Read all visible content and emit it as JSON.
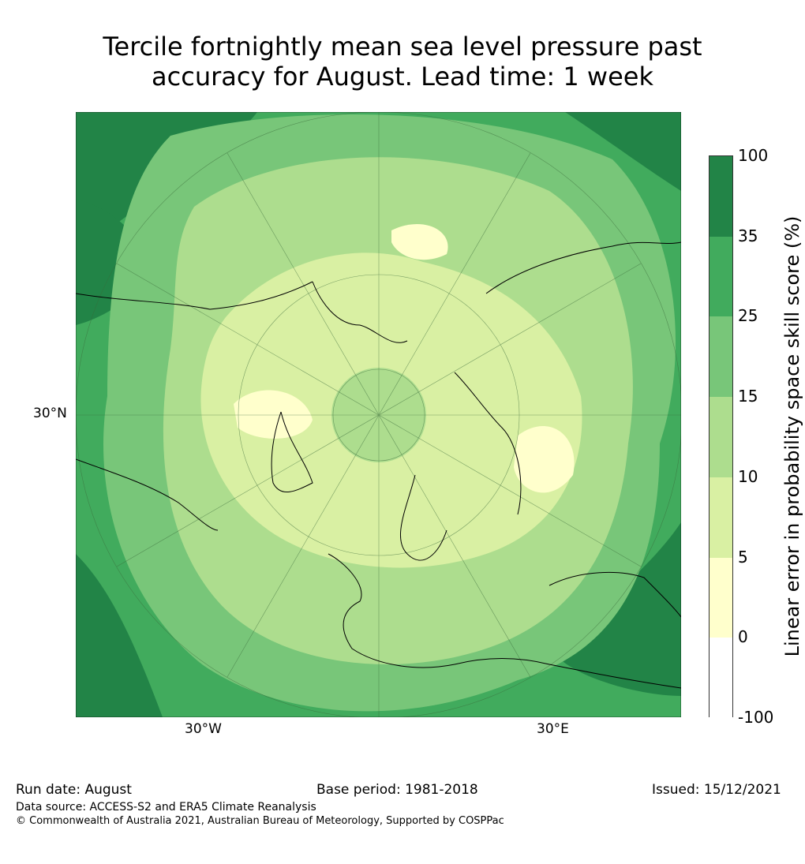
{
  "title_line1": "Tercile fortnightly mean sea level pressure past",
  "title_line2": "accuracy for August. Lead time: 1 week",
  "map": {
    "labels": {
      "lat": "30°N",
      "lon_left": "30°W",
      "lon_right": "30°E"
    }
  },
  "colorbar": {
    "label": "Linear error in probability space skill score (%)",
    "ticks": [
      "100",
      "35",
      "25",
      "15",
      "10",
      "5",
      "0",
      "-100"
    ],
    "colors": {
      "100": "#228447",
      "35": "#41ab5d",
      "25": "#78c679",
      "15": "#addd8e",
      "10": "#d9f0a3",
      "5": "#ffffcc",
      "0": "#ffffff"
    }
  },
  "footer": {
    "run_date": "Run date: August",
    "base_period": "Base period: 1981-2018",
    "issued": "Issued: 15/12/2021",
    "data_source": "Data source: ACCESS-S2 and ERA5 Climate Reanalysis",
    "copyright": "© Commonwealth of Australia 2021, Australian Bureau of Meteorology, Supported by COSPPac"
  }
}
